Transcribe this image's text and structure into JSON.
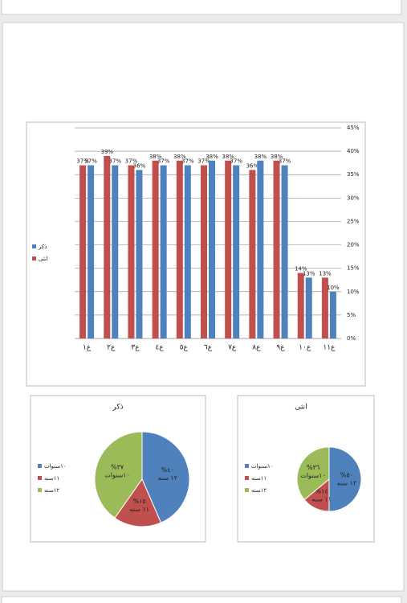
{
  "chart_data": [
    {
      "type": "bar",
      "categories": [
        "ع١",
        "ع٢",
        "ع٣",
        "ع٤",
        "ع٥",
        "ع٦",
        "ع٧",
        "ع٨",
        "ع٩",
        "ع١٠",
        "ع١١"
      ],
      "series": [
        {
          "name": "ذكر",
          "color": "#4f81bd",
          "values": [
            37,
            37,
            36,
            37,
            37,
            38,
            37,
            38,
            37,
            13,
            10
          ],
          "value_labels": [
            "37%",
            "37%",
            "36%",
            "37%",
            "37%",
            "38%",
            "37%",
            "38%",
            "37%",
            "13%",
            "10%"
          ]
        },
        {
          "name": "انثى",
          "color": "#c0504d",
          "values": [
            37,
            39,
            37,
            38,
            38,
            37,
            38,
            36,
            38,
            14,
            13
          ],
          "value_labels": [
            "37%",
            "39%",
            "37%",
            "38%",
            "38%",
            "37%",
            "38%",
            "36%",
            "38%",
            "14%",
            "13%"
          ]
        }
      ],
      "ylim": [
        0,
        45
      ],
      "yticks": [
        {
          "value": 0,
          "label": "0%"
        },
        {
          "value": 5,
          "label": "5%"
        },
        {
          "value": 10,
          "label": "10%"
        },
        {
          "value": 15,
          "label": "15%"
        },
        {
          "value": 20,
          "label": "20%"
        },
        {
          "value": 25,
          "label": "25%"
        },
        {
          "value": 30,
          "label": "30%"
        },
        {
          "value": 35,
          "label": "35%"
        },
        {
          "value": 40,
          "label": "40%"
        },
        {
          "value": 45,
          "label": "45%"
        }
      ],
      "grid": true,
      "legend": "left"
    },
    {
      "type": "pie",
      "title": "ذكر",
      "categories": [
        "١٠سنوات",
        "١١سنه",
        "١٢سنه"
      ],
      "colors": [
        "#4f81bd",
        "#c0504d",
        "#9bbb59"
      ],
      "values": [
        40,
        15,
        37
      ],
      "value_labels": [
        "%٤٠",
        "%١٥",
        "%٣٧"
      ],
      "slice_names": [
        "١٢ سنه",
        "١١ سنه",
        "١٠سنوات"
      ]
    },
    {
      "type": "pie",
      "title": "انثى",
      "categories": [
        "١٠سنوات",
        "١١سنه",
        "١٢سنه"
      ],
      "colors": [
        "#4f81bd",
        "#c0504d",
        "#9bbb59"
      ],
      "values": [
        50,
        14,
        36
      ],
      "value_labels": [
        "%٥٠",
        "%١٤",
        "%٣٦"
      ],
      "slice_names": [
        "١٢ سنه",
        "١١ سنه",
        "١٠سنوات"
      ]
    }
  ]
}
